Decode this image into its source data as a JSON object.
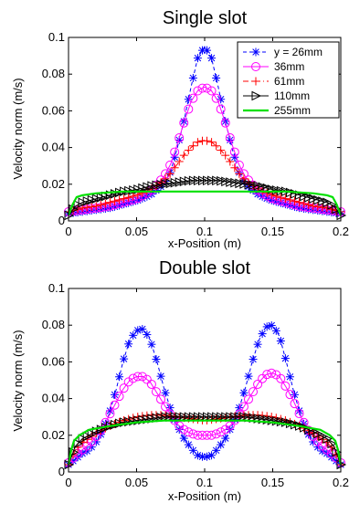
{
  "figure": {
    "background": "#ffffff"
  },
  "chart_data": [
    {
      "type": "line",
      "title": "Single slot",
      "xlabel": "x-Position (m)",
      "ylabel": "Velocity norm (m/s)",
      "xlim": [
        0,
        0.2
      ],
      "ylim": [
        0,
        0.1
      ],
      "xticks": [
        0,
        0.05,
        0.1,
        0.15,
        0.2
      ],
      "xtick_labels": [
        "0",
        "0.05",
        "0.1",
        "0.15",
        "0.2"
      ],
      "yticks": [
        0,
        0.02,
        0.04,
        0.06,
        0.08,
        0.1
      ],
      "ytick_labels": [
        "0",
        "0.02",
        "0.04",
        "0.06",
        "0.08",
        "0.1"
      ],
      "grid": false,
      "legend": {
        "position": "top-right"
      },
      "series": [
        {
          "name": "y = 26mm",
          "color": "#0000ff",
          "marker": "asterisk",
          "line": "dashed",
          "x": [
            0,
            0.01,
            0.02,
            0.03,
            0.04,
            0.05,
            0.06,
            0.07,
            0.075,
            0.08,
            0.085,
            0.09,
            0.095,
            0.1,
            0.105,
            0.11,
            0.115,
            0.12,
            0.125,
            0.13,
            0.14,
            0.15,
            0.16,
            0.17,
            0.18,
            0.19,
            0.2
          ],
          "y": [
            0.004,
            0.005,
            0.006,
            0.007,
            0.009,
            0.011,
            0.014,
            0.02,
            0.027,
            0.04,
            0.055,
            0.073,
            0.089,
            0.095,
            0.089,
            0.073,
            0.055,
            0.04,
            0.027,
            0.02,
            0.014,
            0.011,
            0.009,
            0.007,
            0.006,
            0.005,
            0.004
          ]
        },
        {
          "name": "36mm",
          "color": "#ff00ff",
          "marker": "circle",
          "line": "solid",
          "x": [
            0,
            0.01,
            0.02,
            0.03,
            0.04,
            0.05,
            0.06,
            0.07,
            0.075,
            0.08,
            0.085,
            0.09,
            0.095,
            0.1,
            0.105,
            0.11,
            0.115,
            0.12,
            0.125,
            0.13,
            0.14,
            0.15,
            0.16,
            0.17,
            0.18,
            0.19,
            0.2
          ],
          "y": [
            0.005,
            0.006,
            0.007,
            0.008,
            0.01,
            0.012,
            0.016,
            0.024,
            0.031,
            0.042,
            0.054,
            0.065,
            0.071,
            0.073,
            0.071,
            0.065,
            0.054,
            0.042,
            0.031,
            0.024,
            0.016,
            0.012,
            0.01,
            0.008,
            0.007,
            0.006,
            0.005
          ]
        },
        {
          "name": "61mm",
          "color": "#ff0000",
          "marker": "plus",
          "line": "dashdot",
          "x": [
            0,
            0.01,
            0.02,
            0.03,
            0.04,
            0.05,
            0.06,
            0.07,
            0.075,
            0.08,
            0.085,
            0.09,
            0.095,
            0.1,
            0.105,
            0.11,
            0.115,
            0.12,
            0.125,
            0.13,
            0.14,
            0.15,
            0.16,
            0.17,
            0.18,
            0.19,
            0.2
          ],
          "y": [
            0.005,
            0.007,
            0.008,
            0.01,
            0.012,
            0.014,
            0.017,
            0.022,
            0.026,
            0.031,
            0.036,
            0.04,
            0.043,
            0.044,
            0.043,
            0.04,
            0.036,
            0.031,
            0.026,
            0.022,
            0.017,
            0.014,
            0.012,
            0.01,
            0.008,
            0.007,
            0.005
          ]
        },
        {
          "name": "110mm",
          "color": "#000000",
          "marker": "triangle-right",
          "line": "solid",
          "x": [
            0,
            0.005,
            0.01,
            0.02,
            0.03,
            0.04,
            0.05,
            0.06,
            0.07,
            0.08,
            0.09,
            0.1,
            0.11,
            0.12,
            0.13,
            0.14,
            0.15,
            0.16,
            0.17,
            0.18,
            0.19,
            0.195,
            0.2
          ],
          "y": [
            0.003,
            0.008,
            0.01,
            0.012,
            0.014,
            0.016,
            0.017,
            0.019,
            0.02,
            0.021,
            0.022,
            0.022,
            0.022,
            0.021,
            0.02,
            0.019,
            0.017,
            0.016,
            0.014,
            0.012,
            0.01,
            0.008,
            0.003
          ]
        },
        {
          "name": "255mm",
          "color": "#00e000",
          "marker": "none",
          "line": "solid",
          "x": [
            0,
            0.003,
            0.006,
            0.01,
            0.02,
            0.04,
            0.06,
            0.08,
            0.1,
            0.12,
            0.14,
            0.16,
            0.18,
            0.19,
            0.194,
            0.197,
            0.2
          ],
          "y": [
            0.003,
            0.009,
            0.013,
            0.014,
            0.015,
            0.016,
            0.016,
            0.016,
            0.016,
            0.016,
            0.016,
            0.016,
            0.015,
            0.014,
            0.013,
            0.009,
            0.003
          ]
        }
      ]
    },
    {
      "type": "line",
      "title": "Double slot",
      "xlabel": "x-Position (m)",
      "ylabel": "Velocity norm (m/s)",
      "xlim": [
        0,
        0.2
      ],
      "ylim": [
        0,
        0.1
      ],
      "xticks": [
        0,
        0.05,
        0.1,
        0.15,
        0.2
      ],
      "xtick_labels": [
        "0",
        "0.05",
        "0.1",
        "0.15",
        "0.2"
      ],
      "yticks": [
        0,
        0.02,
        0.04,
        0.06,
        0.08,
        0.1
      ],
      "ytick_labels": [
        "0",
        "0.02",
        "0.04",
        "0.06",
        "0.08",
        "0.1"
      ],
      "grid": false,
      "series": [
        {
          "color": "#0000ff",
          "marker": "asterisk",
          "line": "dashed",
          "x": [
            0,
            0.005,
            0.01,
            0.015,
            0.02,
            0.025,
            0.03,
            0.035,
            0.04,
            0.045,
            0.05,
            0.055,
            0.06,
            0.065,
            0.07,
            0.075,
            0.08,
            0.085,
            0.09,
            0.095,
            0.1,
            0.105,
            0.11,
            0.115,
            0.12,
            0.125,
            0.13,
            0.135,
            0.14,
            0.145,
            0.15,
            0.155,
            0.16,
            0.165,
            0.17,
            0.175,
            0.18,
            0.185,
            0.19,
            0.195,
            0.2
          ],
          "y": [
            0.004,
            0.007,
            0.01,
            0.012,
            0.016,
            0.022,
            0.032,
            0.045,
            0.06,
            0.072,
            0.077,
            0.078,
            0.072,
            0.06,
            0.046,
            0.034,
            0.025,
            0.018,
            0.013,
            0.009,
            0.008,
            0.009,
            0.013,
            0.018,
            0.025,
            0.034,
            0.046,
            0.06,
            0.072,
            0.079,
            0.08,
            0.074,
            0.06,
            0.045,
            0.032,
            0.022,
            0.016,
            0.012,
            0.01,
            0.007,
            0.004
          ]
        },
        {
          "color": "#ff00ff",
          "marker": "circle",
          "line": "solid",
          "x": [
            0,
            0.005,
            0.01,
            0.015,
            0.02,
            0.025,
            0.03,
            0.035,
            0.04,
            0.045,
            0.05,
            0.055,
            0.06,
            0.065,
            0.07,
            0.075,
            0.08,
            0.085,
            0.09,
            0.095,
            0.1,
            0.105,
            0.11,
            0.115,
            0.12,
            0.125,
            0.13,
            0.135,
            0.14,
            0.145,
            0.15,
            0.155,
            0.16,
            0.165,
            0.17,
            0.175,
            0.18,
            0.185,
            0.19,
            0.195,
            0.2
          ],
          "y": [
            0.005,
            0.009,
            0.012,
            0.015,
            0.019,
            0.024,
            0.031,
            0.038,
            0.045,
            0.05,
            0.052,
            0.052,
            0.049,
            0.043,
            0.037,
            0.031,
            0.026,
            0.023,
            0.021,
            0.02,
            0.02,
            0.02,
            0.021,
            0.023,
            0.026,
            0.031,
            0.037,
            0.043,
            0.049,
            0.053,
            0.054,
            0.052,
            0.046,
            0.039,
            0.031,
            0.024,
            0.019,
            0.015,
            0.012,
            0.009,
            0.005
          ]
        },
        {
          "color": "#ff0000",
          "marker": "plus",
          "line": "dashdot",
          "x": [
            0,
            0.005,
            0.01,
            0.02,
            0.03,
            0.04,
            0.05,
            0.06,
            0.07,
            0.08,
            0.09,
            0.1,
            0.11,
            0.12,
            0.13,
            0.14,
            0.15,
            0.16,
            0.17,
            0.18,
            0.19,
            0.195,
            0.2
          ],
          "y": [
            0.004,
            0.012,
            0.016,
            0.021,
            0.025,
            0.028,
            0.03,
            0.031,
            0.031,
            0.03,
            0.029,
            0.028,
            0.029,
            0.03,
            0.031,
            0.031,
            0.03,
            0.028,
            0.025,
            0.021,
            0.016,
            0.012,
            0.004
          ]
        },
        {
          "color": "#000000",
          "marker": "triangle-right",
          "line": "solid",
          "x": [
            0,
            0.005,
            0.01,
            0.02,
            0.03,
            0.04,
            0.05,
            0.06,
            0.07,
            0.08,
            0.09,
            0.1,
            0.11,
            0.12,
            0.13,
            0.14,
            0.15,
            0.16,
            0.17,
            0.18,
            0.19,
            0.195,
            0.2
          ],
          "y": [
            0.004,
            0.014,
            0.018,
            0.022,
            0.025,
            0.027,
            0.028,
            0.029,
            0.03,
            0.03,
            0.03,
            0.03,
            0.03,
            0.03,
            0.03,
            0.029,
            0.028,
            0.027,
            0.025,
            0.022,
            0.018,
            0.014,
            0.004
          ]
        },
        {
          "color": "#00e000",
          "marker": "none",
          "line": "solid",
          "x": [
            0,
            0.002,
            0.004,
            0.008,
            0.015,
            0.03,
            0.05,
            0.07,
            0.09,
            0.1,
            0.11,
            0.13,
            0.15,
            0.17,
            0.185,
            0.192,
            0.196,
            0.198,
            0.2
          ],
          "y": [
            0.004,
            0.012,
            0.017,
            0.02,
            0.023,
            0.025,
            0.027,
            0.028,
            0.028,
            0.028,
            0.028,
            0.028,
            0.027,
            0.025,
            0.023,
            0.02,
            0.017,
            0.012,
            0.004
          ]
        }
      ]
    }
  ]
}
